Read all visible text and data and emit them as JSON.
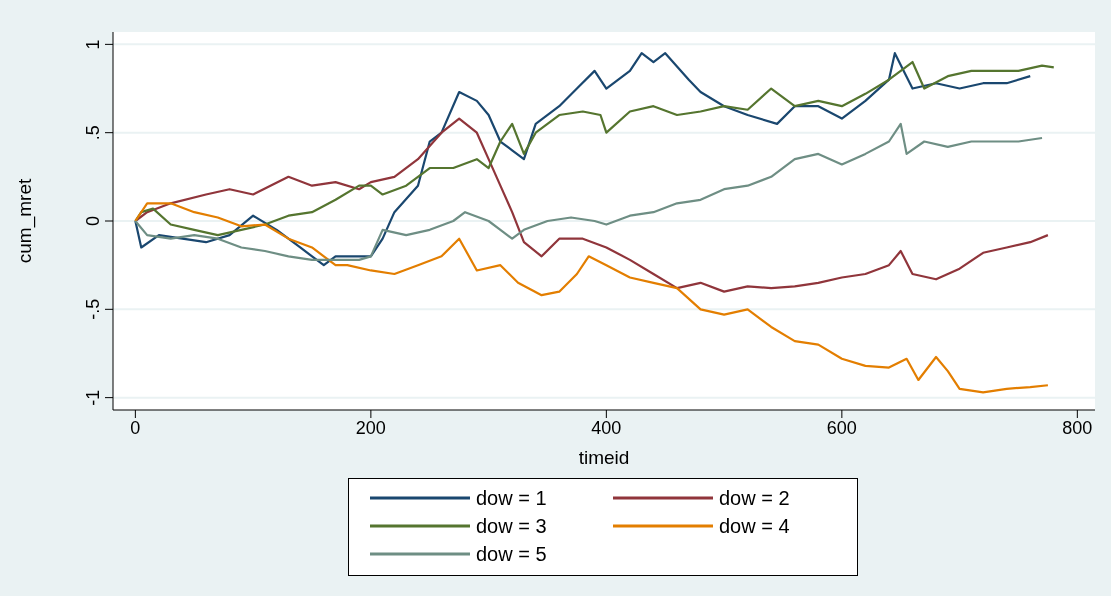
{
  "chart_data": {
    "type": "line",
    "xlabel": "timeid",
    "ylabel": "cum_mret",
    "xlim": [
      -19,
      815
    ],
    "xticks": [
      0,
      200,
      400,
      600,
      800
    ],
    "ylim": [
      -1.07,
      1.07
    ],
    "yticks": [
      {
        "value": -1,
        "label": "-1"
      },
      {
        "value": -0.5,
        "label": "-.5"
      },
      0,
      {
        "value": 0.5,
        "label": ".5"
      },
      1
    ],
    "grid": "y",
    "legend": "bottom",
    "marker": "none",
    "line_style": "solid",
    "series": [
      {
        "name": "dow = 1",
        "color": "#1a476f",
        "x": [
          0,
          5,
          20,
          40,
          60,
          80,
          100,
          120,
          140,
          160,
          170,
          180,
          200,
          210,
          220,
          240,
          250,
          260,
          275,
          290,
          300,
          310,
          320,
          330,
          340,
          360,
          375,
          390,
          400,
          420,
          430,
          440,
          450,
          470,
          480,
          500,
          520,
          545,
          560,
          580,
          600,
          620,
          640,
          645,
          660,
          680,
          700,
          720,
          740,
          760
        ],
        "values": [
          0,
          -0.15,
          -0.08,
          -0.1,
          -0.12,
          -0.08,
          0.03,
          -0.05,
          -0.15,
          -0.25,
          -0.2,
          -0.2,
          -0.2,
          -0.1,
          0.05,
          0.2,
          0.45,
          0.5,
          0.73,
          0.68,
          0.6,
          0.45,
          0.4,
          0.35,
          0.55,
          0.65,
          0.75,
          0.85,
          0.75,
          0.85,
          0.95,
          0.9,
          0.95,
          0.8,
          0.73,
          0.65,
          0.6,
          0.55,
          0.65,
          0.65,
          0.58,
          0.68,
          0.8,
          0.95,
          0.75,
          0.78,
          0.75,
          0.78,
          0.78,
          0.82
        ]
      },
      {
        "name": "dow = 2",
        "color": "#90353b",
        "x": [
          0,
          10,
          30,
          60,
          80,
          100,
          130,
          150,
          170,
          190,
          200,
          220,
          240,
          260,
          275,
          290,
          300,
          310,
          320,
          330,
          345,
          360,
          380,
          400,
          420,
          440,
          460,
          480,
          500,
          520,
          540,
          560,
          580,
          600,
          620,
          640,
          650,
          660,
          680,
          700,
          720,
          740,
          760,
          775
        ],
        "values": [
          0,
          0.05,
          0.1,
          0.15,
          0.18,
          0.15,
          0.25,
          0.2,
          0.22,
          0.18,
          0.22,
          0.25,
          0.35,
          0.5,
          0.58,
          0.5,
          0.35,
          0.2,
          0.05,
          -0.12,
          -0.2,
          -0.1,
          -0.1,
          -0.15,
          -0.22,
          -0.3,
          -0.38,
          -0.35,
          -0.4,
          -0.37,
          -0.38,
          -0.37,
          -0.35,
          -0.32,
          -0.3,
          -0.25,
          -0.17,
          -0.3,
          -0.33,
          -0.27,
          -0.18,
          -0.15,
          -0.12,
          -0.08
        ]
      },
      {
        "name": "dow = 3",
        "color": "#55752f",
        "x": [
          0,
          5,
          15,
          30,
          50,
          70,
          90,
          110,
          130,
          150,
          170,
          190,
          200,
          210,
          230,
          250,
          270,
          290,
          300,
          310,
          320,
          330,
          340,
          360,
          380,
          395,
          400,
          420,
          440,
          460,
          480,
          500,
          520,
          540,
          560,
          580,
          600,
          620,
          640,
          660,
          670,
          690,
          710,
          730,
          750,
          770,
          780
        ],
        "values": [
          0,
          0.05,
          0.07,
          -0.02,
          -0.05,
          -0.08,
          -0.05,
          -0.02,
          0.03,
          0.05,
          0.12,
          0.2,
          0.2,
          0.15,
          0.2,
          0.3,
          0.3,
          0.35,
          0.3,
          0.45,
          0.55,
          0.38,
          0.5,
          0.6,
          0.62,
          0.6,
          0.5,
          0.62,
          0.65,
          0.6,
          0.62,
          0.65,
          0.63,
          0.75,
          0.65,
          0.68,
          0.65,
          0.72,
          0.8,
          0.9,
          0.75,
          0.82,
          0.85,
          0.85,
          0.85,
          0.88,
          0.87
        ]
      },
      {
        "name": "dow = 4",
        "color": "#e37e00",
        "x": [
          0,
          10,
          30,
          50,
          70,
          90,
          110,
          130,
          150,
          170,
          180,
          200,
          220,
          240,
          260,
          275,
          290,
          310,
          325,
          345,
          360,
          375,
          385,
          400,
          420,
          440,
          460,
          480,
          500,
          520,
          540,
          560,
          580,
          600,
          620,
          640,
          655,
          665,
          680,
          690,
          700,
          720,
          740,
          760,
          775
        ],
        "values": [
          0,
          0.1,
          0.1,
          0.05,
          0.02,
          -0.03,
          -0.02,
          -0.1,
          -0.15,
          -0.25,
          -0.25,
          -0.28,
          -0.3,
          -0.25,
          -0.2,
          -0.1,
          -0.28,
          -0.25,
          -0.35,
          -0.42,
          -0.4,
          -0.3,
          -0.2,
          -0.25,
          -0.32,
          -0.35,
          -0.38,
          -0.5,
          -0.53,
          -0.5,
          -0.6,
          -0.68,
          -0.7,
          -0.78,
          -0.82,
          -0.83,
          -0.78,
          -0.9,
          -0.77,
          -0.85,
          -0.95,
          -0.97,
          -0.95,
          -0.94,
          -0.93
        ]
      },
      {
        "name": "dow = 5",
        "color": "#6e8e84",
        "x": [
          0,
          10,
          30,
          50,
          70,
          90,
          110,
          130,
          150,
          170,
          190,
          200,
          210,
          230,
          250,
          270,
          280,
          300,
          310,
          320,
          330,
          350,
          370,
          390,
          400,
          420,
          440,
          460,
          480,
          500,
          520,
          540,
          560,
          580,
          600,
          620,
          640,
          650,
          655,
          670,
          690,
          710,
          730,
          750,
          770
        ],
        "values": [
          0,
          -0.08,
          -0.1,
          -0.08,
          -0.1,
          -0.15,
          -0.17,
          -0.2,
          -0.22,
          -0.22,
          -0.22,
          -0.2,
          -0.05,
          -0.08,
          -0.05,
          0,
          0.05,
          0,
          -0.05,
          -0.1,
          -0.05,
          0,
          0.02,
          0,
          -0.02,
          0.03,
          0.05,
          0.1,
          0.12,
          0.18,
          0.2,
          0.25,
          0.35,
          0.38,
          0.32,
          0.38,
          0.45,
          0.55,
          0.38,
          0.45,
          0.42,
          0.45,
          0.45,
          0.45,
          0.47
        ]
      }
    ]
  }
}
